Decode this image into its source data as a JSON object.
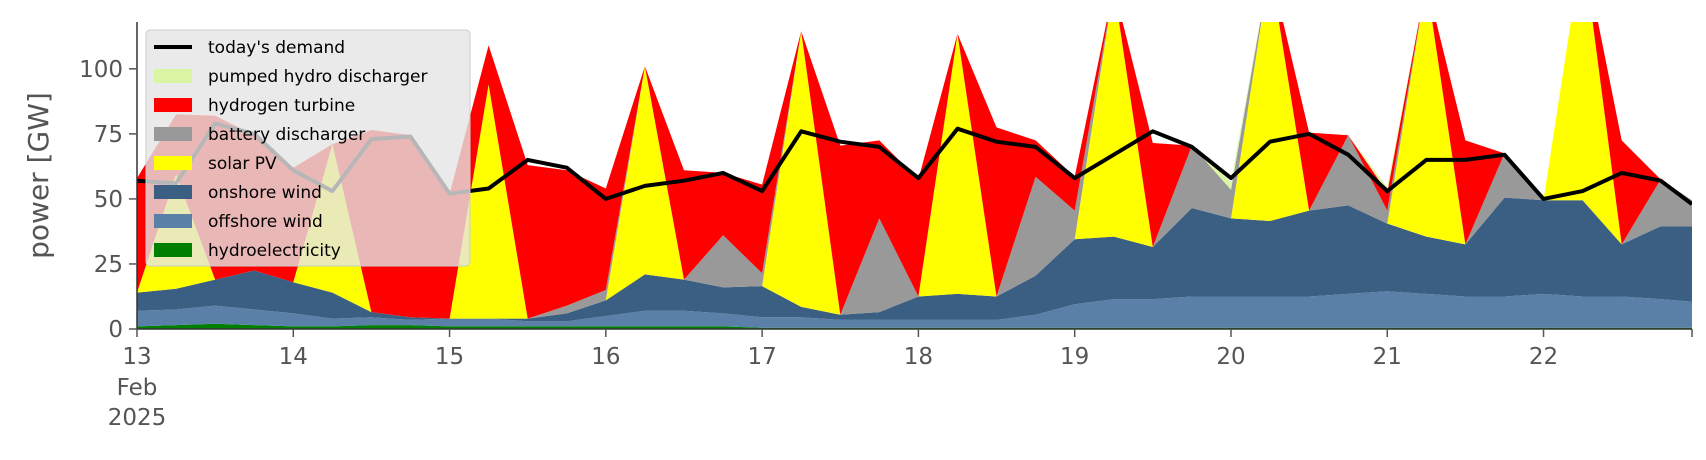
{
  "chart_data": {
    "type": "area",
    "title": "",
    "xlabel": "",
    "ylabel": "power [GW]",
    "ylim": [
      0,
      118
    ],
    "y_ticks": [
      0,
      25,
      50,
      75,
      100
    ],
    "xlim": [
      13.0,
      22.95
    ],
    "x_ticks": [
      {
        "x": 13,
        "label": "13",
        "sub": [
          "Feb",
          "2025"
        ]
      },
      {
        "x": 14,
        "label": "14"
      },
      {
        "x": 15,
        "label": "15"
      },
      {
        "x": 16,
        "label": "16"
      },
      {
        "x": 17,
        "label": "17"
      },
      {
        "x": 18,
        "label": "18"
      },
      {
        "x": 19,
        "label": "19"
      },
      {
        "x": 20,
        "label": "20"
      },
      {
        "x": 21,
        "label": "21"
      },
      {
        "x": 22,
        "label": "22"
      }
    ],
    "x_unit": "day of February 2025",
    "grid": false,
    "legend_position": "top-left",
    "x": [
      13.0,
      13.25,
      13.5,
      13.75,
      14.0,
      14.25,
      14.5,
      14.75,
      15.0,
      15.25,
      15.5,
      15.75,
      16.0,
      16.25,
      16.5,
      16.75,
      17.0,
      17.25,
      17.5,
      17.75,
      18.0,
      18.25,
      18.5,
      18.75,
      19.0,
      19.25,
      19.5,
      19.75,
      20.0,
      20.25,
      20.5,
      20.75,
      21.0,
      21.25,
      21.5,
      21.75,
      22.0,
      22.25,
      22.5,
      22.75,
      22.95
    ],
    "series": [
      {
        "name": "hydroelectricity",
        "color": "#008000",
        "values": [
          1,
          1.5,
          2,
          1.5,
          1,
          1,
          1.5,
          1.5,
          1,
          1,
          1,
          1,
          1,
          1,
          1,
          1,
          0.5,
          0.5,
          0.5,
          0.5,
          0.5,
          0.5,
          0.5,
          0.5,
          0.5,
          0.5,
          0.5,
          0.5,
          0.5,
          0.5,
          0.5,
          0.5,
          0.5,
          0.5,
          0.5,
          0.5,
          0.5,
          0.5,
          0.5,
          0.5,
          0.5
        ]
      },
      {
        "name": "offshore wind",
        "color": "#5a80a8",
        "values": [
          6,
          6,
          7,
          6,
          5,
          3,
          3,
          2,
          3,
          3,
          2,
          2,
          4,
          6,
          6,
          5,
          4,
          4,
          3,
          3,
          3,
          3,
          3,
          5,
          9,
          11,
          11,
          12,
          12,
          12,
          12,
          13,
          14,
          13,
          12,
          12,
          13,
          12,
          12,
          11,
          10
        ]
      },
      {
        "name": "onshore wind",
        "color": "#3a5f83",
        "values": [
          7,
          8,
          10,
          15,
          12,
          10,
          2,
          1,
          0,
          0,
          1,
          3,
          6,
          14,
          12,
          10,
          12,
          4,
          2,
          3,
          9,
          10,
          9,
          15,
          25,
          24,
          20,
          34,
          30,
          29,
          33,
          34,
          26,
          22,
          20,
          38,
          36,
          37,
          20,
          28,
          29
        ]
      },
      {
        "name": "solar PV",
        "color": "#ffff00",
        "values": [
          0,
          44,
          0,
          0,
          0,
          57,
          0,
          0,
          0,
          90,
          0,
          0,
          0,
          80,
          0,
          0,
          0,
          106,
          0,
          0,
          0,
          100,
          0,
          0,
          0,
          96,
          0,
          0,
          0,
          98,
          0,
          0,
          0,
          98,
          0,
          0,
          0,
          98,
          0,
          0,
          0
        ]
      },
      {
        "name": "battery discharger",
        "color": "#999999",
        "values": [
          0,
          0,
          0,
          0,
          0,
          0,
          0,
          0,
          0,
          0,
          0,
          3,
          4,
          0,
          0,
          20,
          5,
          0,
          0,
          36,
          0,
          0,
          0,
          38,
          11,
          0,
          0,
          24,
          11,
          0,
          0,
          27,
          5,
          0,
          0,
          17,
          0,
          0,
          0,
          18,
          10
        ]
      },
      {
        "name": "hydrogen turbine",
        "color": "#ff0000",
        "values": [
          44,
          23,
          63,
          52,
          44,
          0,
          70,
          70,
          48,
          15,
          59,
          52,
          39,
          0,
          42,
          24,
          34,
          0,
          65,
          30,
          45,
          0,
          65,
          14,
          13,
          0,
          40,
          0,
          0,
          0,
          30,
          0,
          7,
          0,
          40,
          0,
          0,
          0,
          40,
          0,
          0
        ]
      },
      {
        "name": "pumped hydro discharger",
        "color": "#dcf5a5",
        "values": [
          0,
          0,
          0,
          0,
          0,
          0,
          0,
          0,
          0,
          0,
          0,
          0,
          0,
          0,
          0,
          0,
          0,
          0,
          0,
          0,
          0,
          0,
          0,
          0,
          0,
          0,
          0,
          0,
          3,
          0,
          0,
          0,
          2,
          0,
          0,
          0,
          0,
          0,
          0,
          0,
          0
        ]
      }
    ],
    "demand": {
      "name": "today's demand",
      "color": "#000000",
      "values": [
        57,
        56,
        79,
        75,
        61,
        53,
        73,
        74,
        52,
        54,
        65,
        62,
        50,
        55,
        57,
        60,
        53,
        76,
        72,
        70,
        58,
        77,
        72,
        70,
        58,
        67,
        76,
        70,
        58,
        72,
        75,
        67,
        53,
        65,
        65,
        67,
        50,
        53,
        60,
        57,
        48
      ]
    },
    "legend_order": [
      "today's demand",
      "pumped hydro discharger",
      "hydrogen turbine",
      "battery discharger",
      "solar PV",
      "onshore wind",
      "offshore wind",
      "hydroelectricity"
    ]
  }
}
